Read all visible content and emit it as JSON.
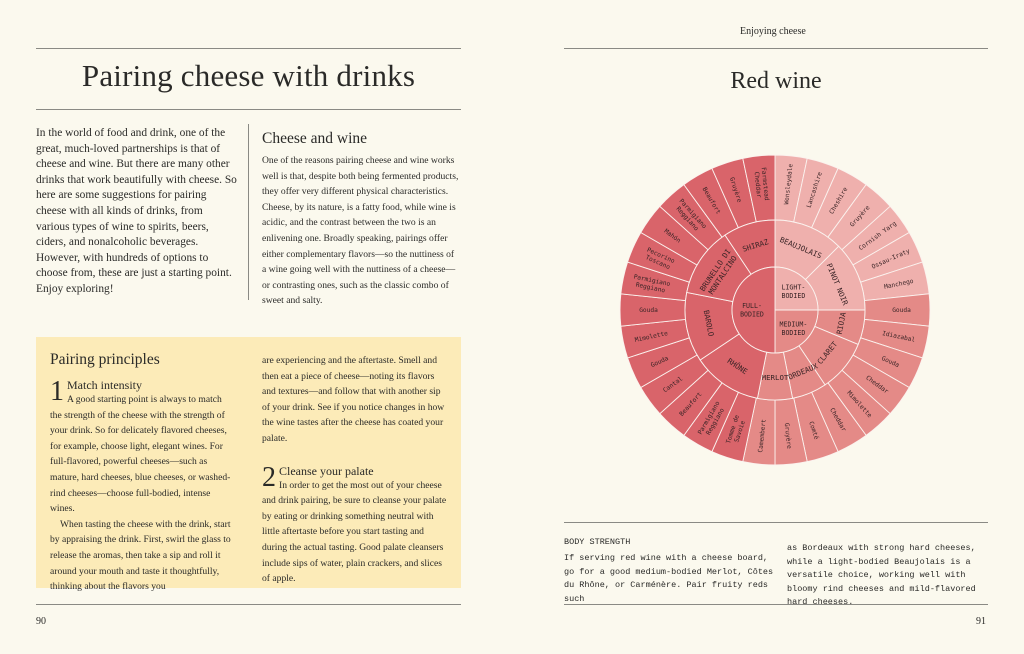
{
  "left": {
    "title": "Pairing cheese with drinks",
    "intro": "In the world of food and drink, one of the great, much-loved partnerships is that of cheese and wine. But there are many other drinks that work beautifully with cheese. So here are some suggestions for pairing cheese with all kinds of drinks, from various types of wine to spirits, beers, ciders, and nonalcoholic beverages. However, with hundreds of options to choose from, these are just a starting point. Enjoy exploring!",
    "cheese_wine_heading": "Cheese and wine",
    "cheese_wine_text": "One of the reasons pairing cheese and wine works well is that, despite both being fermented products, they offer very different physical characteristics. Cheese, by its nature, is a fatty food, while wine is acidic, and the contrast between the two is an enlivening one. Broadly speaking, pairings offer either complementary flavors—so the nuttiness of a wine going well with the nuttiness of a cheese—or contrasting ones, such as the classic combo of sweet and salty.",
    "principles": {
      "heading": "Pairing principles",
      "p1_num": "1",
      "p1_title": "Match intensity",
      "p1_text": "A good starting point is always to match the strength of the cheese with the strength of your drink. So for delicately flavored cheeses, for example, choose light, elegant wines. For full-flavored, powerful cheeses—such as mature, hard cheeses, blue cheeses, or washed-rind cheeses—choose full-bodied, intense wines.",
      "p1_text2": "When tasting the cheese with the drink, start by appraising the drink. First, swirl the glass to release the aromas, then take a sip and roll it around your mouth and taste it thoughtfully, thinking about the flavors you",
      "col2_text": "are experiencing and the aftertaste. Smell and then eat a piece of cheese—noting its flavors and textures—and follow that with another sip of your drink. See if you notice changes in how the wine tastes after the cheese has coated your palate.",
      "p2_num": "2",
      "p2_title": "Cleanse your palate",
      "p2_text": "In order to get the most out of your cheese and drink pairing, be sure to cleanse your palate by eating or drinking something neutral with little aftertaste before you start tasting and during the actual tasting. Good palate cleansers include sips of water, plain crackers, and slices of apple."
    },
    "page_number": "90"
  },
  "right": {
    "running_head": "Enjoying cheese",
    "title": "Red wine",
    "wheel": {
      "colors": {
        "light": "#efb0ad",
        "medium": "#e48a87",
        "full": "#d9646a",
        "lines": "#fbf2ee"
      },
      "inner": [
        {
          "label": "LIGHT-\nBODIED",
          "tone": "light",
          "start": 0,
          "end": 90
        },
        {
          "label": "MEDIUM-\nBODIED",
          "tone": "medium",
          "start": 90,
          "end": 180
        },
        {
          "label": "FULL-\nBODIED",
          "tone": "full",
          "start": 180,
          "end": 360
        }
      ],
      "middle": [
        {
          "label": "BEAUJOLAIS",
          "tone": "light",
          "start": 0,
          "end": 45
        },
        {
          "label": "PINOT NOIR",
          "tone": "light",
          "start": 45,
          "end": 90
        },
        {
          "label": "RIOJA",
          "tone": "medium",
          "start": 90,
          "end": 112.5
        },
        {
          "label": "CLARET",
          "tone": "medium",
          "start": 112.5,
          "end": 146.25
        },
        {
          "label": "BORDEAUX",
          "tone": "medium",
          "start": 146.25,
          "end": 168.75
        },
        {
          "label": "MERLOT",
          "tone": "medium",
          "start": 168.75,
          "end": 191.25
        },
        {
          "label": "RHÔNE",
          "tone": "full",
          "start": 191.25,
          "end": 236.25
        },
        {
          "label": "BAROLO",
          "tone": "full",
          "start": 236.25,
          "end": 281.25
        },
        {
          "label": "BRUNELLO DI\nMONTALCINO",
          "tone": "full",
          "start": 281.25,
          "end": 326.25
        },
        {
          "label": "SHIRAZ",
          "tone": "full",
          "start": 326.25,
          "end": 360
        }
      ],
      "outer": [
        "Wensleydale",
        "Lancashire",
        "Cheshire",
        "Gruyère",
        "Cornish Yarg",
        "Ossau-Iraty",
        "Manchego",
        "Gouda",
        "Idiazabal",
        "Gouda",
        "Cheddar",
        "Mimolette",
        "Cheddar",
        "Comté",
        "Gruyère",
        "Camembert",
        "Tomme de\nSavoie",
        "Parmigiano\nReggiano",
        "Beaufort",
        "Cantal",
        "Gouda",
        "Mimolette",
        "Gouda",
        "Parmigiano\nReggiano",
        "Pecorino\nToscano",
        "Mahón",
        "Parmigiano\nReggiano",
        "Beaufort",
        "Gruyère",
        "Farmstead\nCheddar"
      ]
    },
    "strength_heading": "BODY STRENGTH",
    "strength_text_1": "If serving red wine with a cheese board, go for a good medium-bodied Merlot, Côtes du Rhône, or Carménère. Pair fruity reds such",
    "strength_text_2": "as Bordeaux with strong hard cheeses, while a light-bodied Beaujolais is a versatile choice, working well with bloomy rind cheeses and mild-flavored hard cheeses.",
    "page_number": "91"
  }
}
